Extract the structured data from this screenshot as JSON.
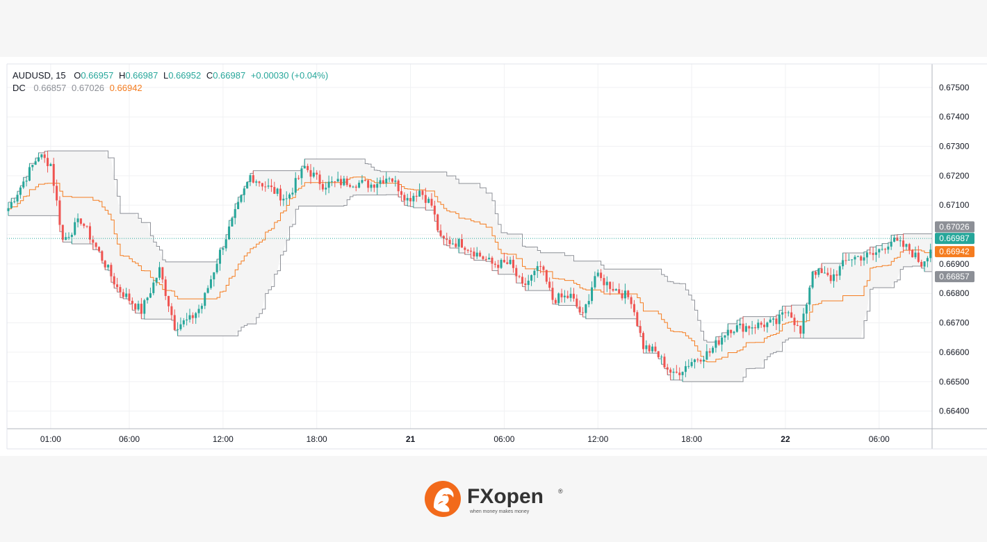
{
  "legend": {
    "symbol": "AUDUSD, 15",
    "o_label": "O",
    "o_value": "0.66957",
    "h_label": "H",
    "h_value": "0.66987",
    "l_label": "L",
    "l_value": "0.66952",
    "c_label": "C",
    "c_value": "0.66987",
    "change": "+0.00030 (+0.04%)",
    "dc_label": "DC",
    "dc_lower": "0.66857",
    "dc_upper": "0.67026",
    "dc_mid": "0.66942"
  },
  "brand": {
    "name": "FXopen",
    "tagline": "when money makes money",
    "registered": "®"
  },
  "colors": {
    "up": "#26a69a",
    "down": "#ef5350",
    "channel": "#8c8f96",
    "basis": "#f57c1f",
    "fill": "#f4f4f4"
  },
  "chart_data": {
    "type": "candlestick",
    "symbol": "AUDUSD",
    "timeframe": "15",
    "indicator": "Donchian Channels (DC)",
    "ylim": [
      0.6634,
      0.6758
    ],
    "y_ticks": [
      "0.67500",
      "0.67400",
      "0.67300",
      "0.67200",
      "0.67100",
      "0.66900",
      "0.66800",
      "0.66700",
      "0.66600",
      "0.66500",
      "0.66400"
    ],
    "x_ticks": [
      {
        "label": "01:00",
        "bar": 14,
        "bold": false
      },
      {
        "label": "06:00",
        "bar": 40,
        "bold": false
      },
      {
        "label": "12:00",
        "bar": 71,
        "bold": false
      },
      {
        "label": "18:00",
        "bar": 102,
        "bold": false
      },
      {
        "label": "21",
        "bar": 133,
        "bold": true
      },
      {
        "label": "06:00",
        "bar": 164,
        "bold": false
      },
      {
        "label": "12:00",
        "bar": 195,
        "bold": false
      },
      {
        "label": "18:00",
        "bar": 226,
        "bold": false
      },
      {
        "label": "22",
        "bar": 257,
        "bold": true
      },
      {
        "label": "06:00",
        "bar": 288,
        "bold": false
      }
    ],
    "price_labels": [
      {
        "value": "0.67026",
        "price": 0.67026,
        "color": "#8c8f96"
      },
      {
        "value": "0.66987",
        "price": 0.66987,
        "color": "#26a69a"
      },
      {
        "value": "0.66942",
        "price": 0.66942,
        "color": "#f57c1f"
      },
      {
        "value": "0.66857",
        "price": 0.66857,
        "color": "#8c8f96"
      }
    ],
    "last_price": 0.66987,
    "anchors": [
      [
        0,
        0.6709
      ],
      [
        10,
        0.6727
      ],
      [
        14,
        0.6724
      ],
      [
        18,
        0.6698
      ],
      [
        24,
        0.6705
      ],
      [
        32,
        0.669
      ],
      [
        36,
        0.6682
      ],
      [
        44,
        0.6674
      ],
      [
        50,
        0.6688
      ],
      [
        55,
        0.6669
      ],
      [
        60,
        0.6671
      ],
      [
        64,
        0.6676
      ],
      [
        70,
        0.6694
      ],
      [
        80,
        0.672
      ],
      [
        86,
        0.6716
      ],
      [
        92,
        0.6712
      ],
      [
        98,
        0.6723
      ],
      [
        104,
        0.6717
      ],
      [
        112,
        0.6718
      ],
      [
        120,
        0.6717
      ],
      [
        126,
        0.672
      ],
      [
        132,
        0.6712
      ],
      [
        136,
        0.6715
      ],
      [
        140,
        0.671
      ],
      [
        143,
        0.6698
      ],
      [
        150,
        0.6697
      ],
      [
        160,
        0.669
      ],
      [
        166,
        0.669
      ],
      [
        170,
        0.6682
      ],
      [
        176,
        0.6689
      ],
      [
        180,
        0.6678
      ],
      [
        186,
        0.6679
      ],
      [
        190,
        0.6672
      ],
      [
        194,
        0.6686
      ],
      [
        200,
        0.6682
      ],
      [
        206,
        0.6678
      ],
      [
        210,
        0.6662
      ],
      [
        214,
        0.666
      ],
      [
        220,
        0.6652
      ],
      [
        226,
        0.6657
      ],
      [
        232,
        0.666
      ],
      [
        238,
        0.6668
      ],
      [
        246,
        0.6669
      ],
      [
        254,
        0.667
      ],
      [
        258,
        0.6675
      ],
      [
        262,
        0.6666
      ],
      [
        266,
        0.6688
      ],
      [
        272,
        0.6685
      ],
      [
        278,
        0.6692
      ],
      [
        286,
        0.6693
      ],
      [
        292,
        0.6698
      ],
      [
        298,
        0.6695
      ],
      [
        302,
        0.669
      ],
      [
        307,
        0.6699
      ]
    ],
    "channel_period": 20
  }
}
